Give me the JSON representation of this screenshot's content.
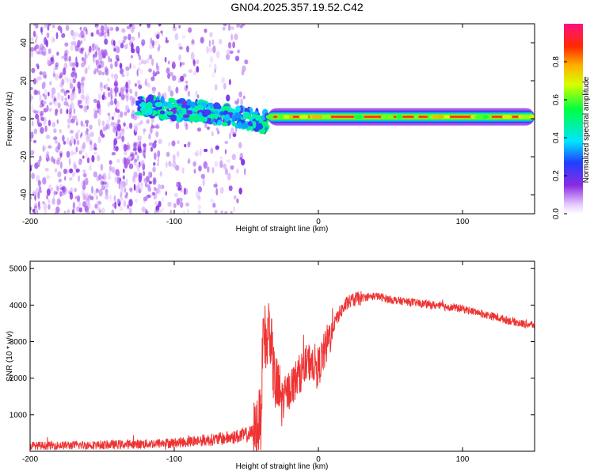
{
  "title": "GN04.2025.357.19.52.C42",
  "chart_data": [
    {
      "type": "heatmap",
      "name": "spectrogram",
      "xlabel": "Height of straight line (km)",
      "ylabel": "Frequency (Hz)",
      "xlim": [
        -200,
        150
      ],
      "ylim": [
        -50,
        50
      ],
      "xticks": [
        -200,
        -100,
        0,
        100
      ],
      "yticks": [
        -40,
        -20,
        0,
        20,
        40
      ],
      "colorbar": {
        "label": "Normalized spectral amplitude",
        "range": [
          0,
          1
        ],
        "ticks": [
          "0.0",
          "0.2",
          "0.4",
          "0.6",
          "0.8"
        ]
      },
      "features": [
        {
          "region": "noise",
          "x_range": [
            -200,
            -50
          ],
          "freq_range": [
            -50,
            50
          ],
          "amplitude": 0.1
        },
        {
          "region": "wavering band",
          "x_range": [
            -125,
            -35
          ],
          "center_freq": [
            7,
            5,
            4,
            1,
            -2
          ],
          "amplitude": 0.35
        },
        {
          "region": "stable line",
          "x_range": [
            -35,
            150
          ],
          "center_freq": 1,
          "amplitude": 0.95
        }
      ]
    },
    {
      "type": "line",
      "name": "snr",
      "xlabel": "Height of straight line (km)",
      "ylabel": "SNR (10 * v/v)",
      "xlim": [
        -200,
        150
      ],
      "ylim": [
        0,
        5200
      ],
      "xticks": [
        -200,
        -100,
        0,
        100
      ],
      "yticks": [
        1000,
        2000,
        3000,
        4000,
        5000
      ],
      "color": "#ee3333",
      "series": [
        {
          "name": "SNR",
          "x": [
            -200,
            -180,
            -160,
            -140,
            -120,
            -100,
            -90,
            -80,
            -70,
            -60,
            -50,
            -45,
            -40,
            -38,
            -36,
            -34,
            -32,
            -30,
            -25,
            -20,
            -15,
            -10,
            -5,
            0,
            5,
            10,
            15,
            20,
            25,
            30,
            40,
            50,
            60,
            70,
            80,
            90,
            100,
            110,
            120,
            130,
            140,
            150
          ],
          "y": [
            150,
            160,
            170,
            180,
            200,
            230,
            260,
            300,
            330,
            380,
            450,
            500,
            900,
            3500,
            2800,
            3600,
            2500,
            1800,
            1400,
            1700,
            2000,
            2300,
            2500,
            2300,
            2800,
            3400,
            3800,
            4050,
            4150,
            4200,
            4250,
            4150,
            4100,
            4050,
            4000,
            3950,
            3900,
            3800,
            3700,
            3600,
            3500,
            3450
          ]
        }
      ]
    }
  ]
}
